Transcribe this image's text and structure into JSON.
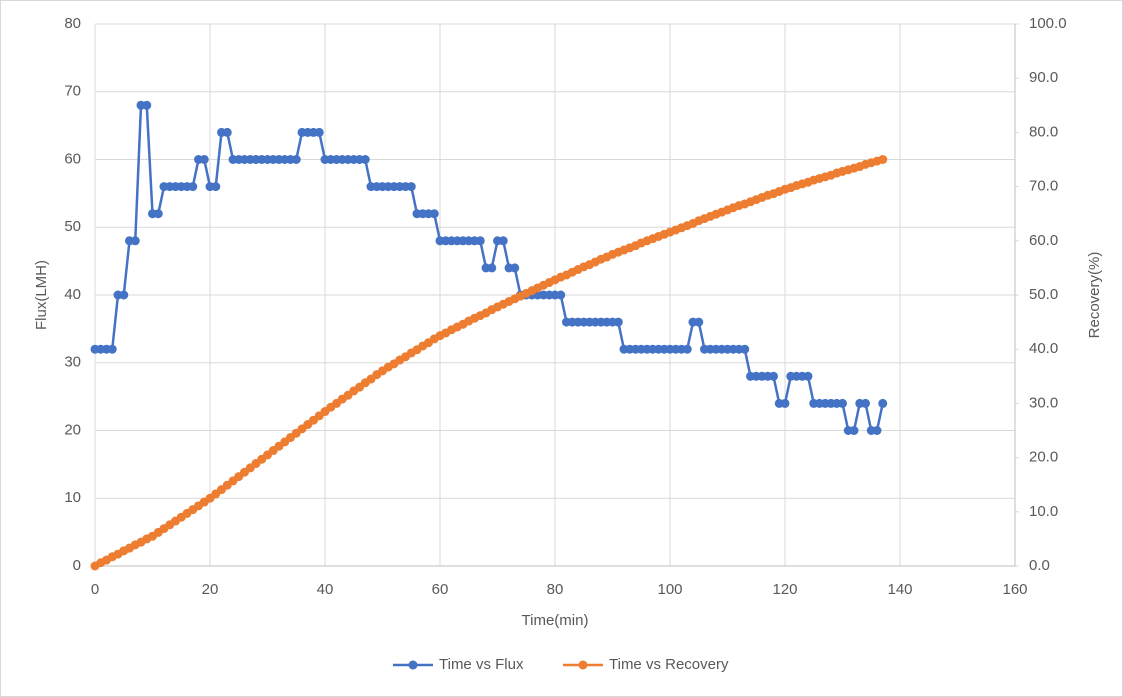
{
  "chart_data": {
    "type": "line",
    "xlabel": "Time(min)",
    "ylabel": "Flux(LMH)",
    "y2label": "Recovery(%)",
    "xlim": [
      0,
      160
    ],
    "xticks": [
      0,
      20,
      40,
      60,
      80,
      100,
      120,
      140,
      160
    ],
    "ylim": [
      0,
      80
    ],
    "yticks": [
      0,
      10,
      20,
      30,
      40,
      50,
      60,
      70,
      80
    ],
    "y2lim": [
      0,
      100
    ],
    "y2ticks": [
      {
        "value": 0,
        "label": "0.0"
      },
      {
        "value": 10,
        "label": "10.0"
      },
      {
        "value": 20,
        "label": "20.0"
      },
      {
        "value": 30,
        "label": "30.0"
      },
      {
        "value": 40,
        "label": "40.0"
      },
      {
        "value": 50,
        "label": "50.0"
      },
      {
        "value": 60,
        "label": "60.0"
      },
      {
        "value": 70,
        "label": "70.0"
      },
      {
        "value": 80,
        "label": "80.0"
      },
      {
        "value": 90,
        "label": "90.0"
      },
      {
        "value": 100,
        "label": "100.0"
      }
    ],
    "grid": true,
    "legend": "bottom",
    "x": [
      0,
      1,
      2,
      3,
      4,
      5,
      6,
      7,
      8,
      9,
      10,
      11,
      12,
      13,
      14,
      15,
      16,
      17,
      18,
      19,
      20,
      21,
      22,
      23,
      24,
      25,
      26,
      27,
      28,
      29,
      30,
      31,
      32,
      33,
      34,
      35,
      36,
      37,
      38,
      39,
      40,
      41,
      42,
      43,
      44,
      45,
      46,
      47,
      48,
      49,
      50,
      51,
      52,
      53,
      54,
      55,
      56,
      57,
      58,
      59,
      60,
      61,
      62,
      63,
      64,
      65,
      66,
      67,
      68,
      69,
      70,
      71,
      72,
      73,
      74,
      75,
      76,
      77,
      78,
      79,
      80,
      81,
      82,
      83,
      84,
      85,
      86,
      87,
      88,
      89,
      90,
      91,
      92,
      93,
      94,
      95,
      96,
      97,
      98,
      99,
      100,
      101,
      102,
      103,
      104,
      105,
      106,
      107,
      108,
      109,
      110,
      111,
      112,
      113,
      114,
      115,
      116,
      117,
      118,
      119,
      120,
      121,
      122,
      123,
      124,
      125,
      126,
      127,
      128,
      129,
      130,
      131,
      132,
      133,
      134,
      135,
      136,
      137
    ],
    "series": [
      {
        "name": "Time vs Flux",
        "color": "#4472c4",
        "axis": "y",
        "values": [
          32,
          32,
          32,
          32,
          40,
          40,
          48,
          48,
          68,
          68,
          52,
          52,
          56,
          56,
          56,
          56,
          56,
          56,
          60,
          60,
          56,
          56,
          64,
          64,
          60,
          60,
          60,
          60,
          60,
          60,
          60,
          60,
          60,
          60,
          60,
          60,
          64,
          64,
          64,
          64,
          60,
          60,
          60,
          60,
          60,
          60,
          60,
          60,
          56,
          56,
          56,
          56,
          56,
          56,
          56,
          56,
          52,
          52,
          52,
          52,
          48,
          48,
          48,
          48,
          48,
          48,
          48,
          48,
          44,
          44,
          48,
          48,
          44,
          44,
          40,
          40,
          40,
          40,
          40,
          40,
          40,
          40,
          36,
          36,
          36,
          36,
          36,
          36,
          36,
          36,
          36,
          36,
          32,
          32,
          32,
          32,
          32,
          32,
          32,
          32,
          32,
          32,
          32,
          32,
          36,
          36,
          32,
          32,
          32,
          32,
          32,
          32,
          32,
          32,
          28,
          28,
          28,
          28,
          28,
          24,
          24,
          28,
          28,
          28,
          28,
          24,
          24,
          24,
          24,
          24,
          24,
          20,
          20,
          24,
          24,
          20,
          20,
          24
        ]
      },
      {
        "name": "Time vs Recovery",
        "color": "#ed7d31",
        "axis": "y2",
        "values": [
          0,
          0.6,
          1.1,
          1.7,
          2.2,
          2.8,
          3.3,
          3.9,
          4.4,
          5.0,
          5.5,
          6.2,
          6.9,
          7.6,
          8.3,
          9.0,
          9.7,
          10.4,
          11.1,
          11.8,
          12.5,
          13.3,
          14.1,
          14.9,
          15.7,
          16.5,
          17.3,
          18.1,
          18.9,
          19.7,
          20.5,
          21.3,
          22.1,
          22.9,
          23.7,
          24.5,
          25.3,
          26.1,
          26.9,
          27.7,
          28.5,
          29.3,
          30.0,
          30.8,
          31.5,
          32.3,
          33.0,
          33.8,
          34.5,
          35.3,
          36.0,
          36.7,
          37.3,
          38.0,
          38.6,
          39.3,
          39.9,
          40.6,
          41.2,
          41.9,
          42.5,
          43.0,
          43.6,
          44.1,
          44.6,
          45.2,
          45.7,
          46.2,
          46.7,
          47.3,
          47.8,
          48.3,
          48.8,
          49.3,
          49.8,
          50.3,
          50.8,
          51.3,
          51.8,
          52.3,
          52.8,
          53.3,
          53.7,
          54.2,
          54.7,
          55.2,
          55.6,
          56.1,
          56.6,
          57.0,
          57.5,
          57.9,
          58.3,
          58.7,
          59.1,
          59.6,
          60.0,
          60.4,
          60.8,
          61.2,
          61.6,
          62.0,
          62.4,
          62.8,
          63.2,
          63.7,
          64.1,
          64.5,
          64.9,
          65.3,
          65.7,
          66.1,
          66.5,
          66.8,
          67.2,
          67.6,
          68.0,
          68.4,
          68.7,
          69.1,
          69.5,
          69.8,
          70.2,
          70.5,
          70.8,
          71.2,
          71.5,
          71.8,
          72.1,
          72.5,
          72.8,
          73.1,
          73.4,
          73.7,
          74.1,
          74.4,
          74.7,
          75.0
        ]
      }
    ]
  }
}
